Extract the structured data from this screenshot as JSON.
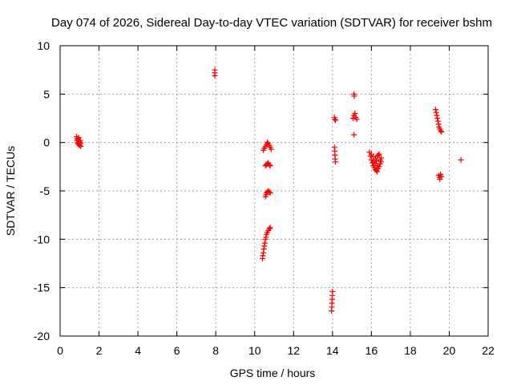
{
  "chart_data": {
    "type": "scatter",
    "title": "Day 074 of 2026, Sidereal Day-to-day VTEC variation (SDTVAR) for receiver bshm",
    "xlabel": "GPS time / hours",
    "ylabel": "SDTVAR / TECUs",
    "xlim": [
      0,
      22
    ],
    "ylim": [
      -20,
      10
    ],
    "x_ticks": [
      0,
      2,
      4,
      6,
      8,
      10,
      12,
      14,
      16,
      18,
      20,
      22
    ],
    "y_ticks": [
      -20,
      -15,
      -10,
      -5,
      0,
      5,
      10
    ],
    "x_tick_labels": [
      "0",
      "2",
      "4",
      "6",
      "8",
      "10",
      "12",
      "14",
      "16",
      "18",
      "20",
      "22"
    ],
    "y_tick_labels": [
      "-20",
      "-15",
      "-10",
      "-5",
      "0",
      "5",
      "10"
    ],
    "grid": true,
    "marker": "+",
    "color": "#ff0000",
    "series": [
      {
        "name": "SDTVAR",
        "points": [
          [
            0.85,
            0.6
          ],
          [
            0.87,
            0.4
          ],
          [
            0.88,
            0.2
          ],
          [
            0.9,
            0.0
          ],
          [
            0.92,
            -0.1
          ],
          [
            0.93,
            0.3
          ],
          [
            0.95,
            0.5
          ],
          [
            0.96,
            -0.2
          ],
          [
            0.98,
            0.1
          ],
          [
            1.0,
            -0.3
          ],
          [
            1.02,
            0.0
          ],
          [
            1.03,
            0.2
          ],
          [
            1.05,
            -0.1
          ],
          [
            1.06,
            -0.4
          ],
          [
            7.95,
            7.5
          ],
          [
            7.95,
            7.2
          ],
          [
            7.95,
            6.9
          ],
          [
            10.4,
            -12.0
          ],
          [
            10.42,
            -11.7
          ],
          [
            10.45,
            -11.4
          ],
          [
            10.47,
            -11.0
          ],
          [
            10.5,
            -10.7
          ],
          [
            10.52,
            -10.4
          ],
          [
            10.55,
            -10.0
          ],
          [
            10.58,
            -9.8
          ],
          [
            10.6,
            -9.5
          ],
          [
            10.65,
            -9.3
          ],
          [
            10.7,
            -9.1
          ],
          [
            10.75,
            -8.9
          ],
          [
            10.8,
            -8.8
          ],
          [
            10.55,
            -5.6
          ],
          [
            10.58,
            -5.4
          ],
          [
            10.62,
            -5.2
          ],
          [
            10.66,
            -5.1
          ],
          [
            10.7,
            -5.0
          ],
          [
            10.75,
            -5.1
          ],
          [
            10.8,
            -5.2
          ],
          [
            10.55,
            -2.4
          ],
          [
            10.6,
            -2.3
          ],
          [
            10.65,
            -2.2
          ],
          [
            10.7,
            -2.1
          ],
          [
            10.75,
            -2.3
          ],
          [
            10.8,
            -2.4
          ],
          [
            10.45,
            -0.8
          ],
          [
            10.5,
            -0.6
          ],
          [
            10.55,
            -0.4
          ],
          [
            10.6,
            -0.2
          ],
          [
            10.65,
            0.0
          ],
          [
            10.7,
            -0.1
          ],
          [
            10.75,
            -0.3
          ],
          [
            10.8,
            -0.5
          ],
          [
            10.85,
            -0.7
          ],
          [
            13.95,
            -17.4
          ],
          [
            13.96,
            -17.0
          ],
          [
            13.97,
            -16.6
          ],
          [
            13.98,
            -16.2
          ],
          [
            13.99,
            -15.8
          ],
          [
            14.0,
            -15.4
          ],
          [
            14.1,
            2.6
          ],
          [
            14.12,
            2.4
          ],
          [
            14.15,
            2.3
          ],
          [
            14.1,
            -0.5
          ],
          [
            14.12,
            -0.9
          ],
          [
            14.12,
            -1.3
          ],
          [
            14.14,
            -1.7
          ],
          [
            14.15,
            -2.0
          ],
          [
            15.1,
            5.0
          ],
          [
            15.12,
            4.8
          ],
          [
            15.05,
            2.5
          ],
          [
            15.1,
            2.8
          ],
          [
            15.15,
            3.0
          ],
          [
            15.2,
            2.6
          ],
          [
            15.25,
            2.4
          ],
          [
            15.1,
            0.8
          ],
          [
            15.9,
            -1.0
          ],
          [
            15.95,
            -1.4
          ],
          [
            16.0,
            -1.8
          ],
          [
            16.05,
            -2.1
          ],
          [
            16.1,
            -2.4
          ],
          [
            16.15,
            -2.6
          ],
          [
            16.2,
            -2.8
          ],
          [
            16.25,
            -2.9
          ],
          [
            16.3,
            -3.0
          ],
          [
            16.35,
            -2.7
          ],
          [
            16.4,
            -2.5
          ],
          [
            16.45,
            -2.2
          ],
          [
            16.5,
            -2.0
          ],
          [
            16.0,
            -1.2
          ],
          [
            16.1,
            -1.5
          ],
          [
            16.2,
            -1.7
          ],
          [
            16.3,
            -1.4
          ],
          [
            16.4,
            -1.2
          ],
          [
            16.5,
            -1.6
          ],
          [
            16.1,
            -2.0
          ],
          [
            16.2,
            -2.2
          ],
          [
            16.3,
            -2.4
          ],
          [
            16.45,
            -1.8
          ],
          [
            16.35,
            -1.3
          ],
          [
            16.25,
            -1.9
          ],
          [
            19.3,
            3.4
          ],
          [
            19.33,
            3.1
          ],
          [
            19.36,
            2.8
          ],
          [
            19.39,
            2.5
          ],
          [
            19.42,
            2.2
          ],
          [
            19.45,
            1.9
          ],
          [
            19.48,
            1.6
          ],
          [
            19.52,
            1.4
          ],
          [
            19.56,
            1.2
          ],
          [
            19.6,
            1.1
          ],
          [
            19.45,
            -3.4
          ],
          [
            19.5,
            -3.6
          ],
          [
            19.55,
            -3.3
          ],
          [
            19.6,
            -3.5
          ],
          [
            19.52,
            -3.8
          ],
          [
            20.6,
            -1.8
          ]
        ]
      }
    ]
  }
}
